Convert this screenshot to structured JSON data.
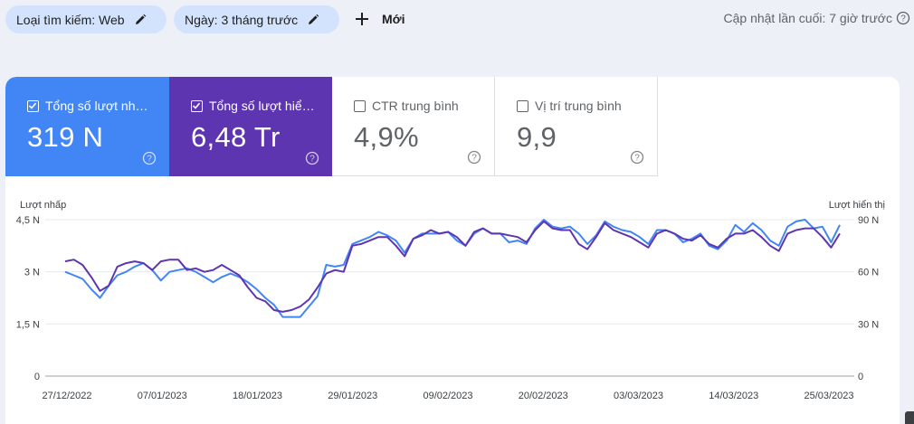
{
  "filters": {
    "search_type": "Loại tìm kiếm: Web",
    "date": "Ngày: 3 tháng trước",
    "new_label": "Mới"
  },
  "last_updated": "Cập nhật lần cuối: 7 giờ trước",
  "metrics": [
    {
      "label": "Tổng số lượt nh…",
      "value": "319 N",
      "checked": true,
      "color": "#4285f4"
    },
    {
      "label": "Tổng số lượt hiể…",
      "value": "6,48 Tr",
      "checked": true,
      "color": "#5e35b1"
    },
    {
      "label": "CTR trung bình",
      "value": "4,9%",
      "checked": false
    },
    {
      "label": "Vị trí trung bình",
      "value": "9,9",
      "checked": false
    }
  ],
  "chart_data": {
    "type": "line",
    "ylabel_left": "Lượt nhấp",
    "ylabel_right": "Lượt hiển thị",
    "left_ticks": [
      "0",
      "1,5 N",
      "3 N",
      "4,5 N"
    ],
    "right_ticks": [
      "0",
      "30 N",
      "60 N",
      "90 N"
    ],
    "ylim_left": [
      0,
      4500
    ],
    "ylim_right": [
      0,
      90000
    ],
    "x_tick_labels": [
      "27/12/2022",
      "07/01/2023",
      "18/01/2023",
      "29/01/2023",
      "09/02/2023",
      "20/02/2023",
      "03/03/2023",
      "14/03/2023",
      "25/03/2023"
    ],
    "grid": true,
    "series": [
      {
        "name": "Tổng số lượt nh…",
        "axis": "left",
        "color": "#4285f4",
        "values": [
          3000,
          2900,
          2800,
          2500,
          2250,
          2600,
          2900,
          3000,
          3150,
          3250,
          3050,
          2750,
          3000,
          3050,
          3100,
          3000,
          2850,
          2700,
          2850,
          2950,
          2850,
          2700,
          2500,
          2250,
          2050,
          1700,
          1700,
          1700,
          2000,
          2300,
          3200,
          3150,
          3200,
          3800,
          3900,
          4000,
          4150,
          4050,
          3900,
          3550,
          3950,
          4100,
          4100,
          4100,
          4150,
          3900,
          3750,
          4100,
          4250,
          4100,
          4100,
          3850,
          3900,
          3800,
          4250,
          4500,
          4300,
          4250,
          4300,
          4100,
          3800,
          4050,
          4450,
          4300,
          4200,
          4150,
          4000,
          3800,
          4200,
          4200,
          4100,
          3850,
          3950,
          4100,
          3750,
          3650,
          3900,
          4350,
          4150,
          4400,
          4200,
          3900,
          3750,
          4300,
          4450,
          4500,
          4250,
          4300,
          3850,
          4350
        ]
      },
      {
        "name": "Tổng số lượt hiể…",
        "axis": "right",
        "color": "#5e35b1",
        "values": [
          66000,
          67000,
          64000,
          57000,
          49000,
          52000,
          63000,
          65000,
          66000,
          65000,
          61000,
          66000,
          67000,
          67000,
          61000,
          62000,
          60000,
          61000,
          64000,
          61000,
          58000,
          51000,
          45000,
          43000,
          38000,
          37000,
          38000,
          40000,
          44000,
          51000,
          59000,
          61000,
          60000,
          75000,
          76000,
          78000,
          80000,
          80000,
          75000,
          69000,
          79000,
          81000,
          84000,
          82000,
          83000,
          80000,
          75000,
          83000,
          85000,
          82000,
          82000,
          81000,
          80000,
          77000,
          84000,
          89000,
          85000,
          84000,
          84000,
          76000,
          73000,
          80000,
          88000,
          84000,
          82000,
          80000,
          77000,
          74000,
          82000,
          84000,
          82000,
          79000,
          78000,
          81000,
          76000,
          74000,
          79000,
          82000,
          82000,
          84000,
          80000,
          75000,
          72000,
          82000,
          84000,
          85000,
          85000,
          80000,
          74000,
          82000
        ]
      }
    ]
  },
  "colors": {
    "accent_blue": "#4285f4",
    "accent_purple": "#5e35b1",
    "chip_bg": "#d3e3fd",
    "page_bg": "#eef0f8"
  },
  "icons": {
    "chip_edit": "pencil-icon",
    "add": "plus-icon",
    "help": "help-circle-icon",
    "checkbox": "checkbox-icon"
  }
}
